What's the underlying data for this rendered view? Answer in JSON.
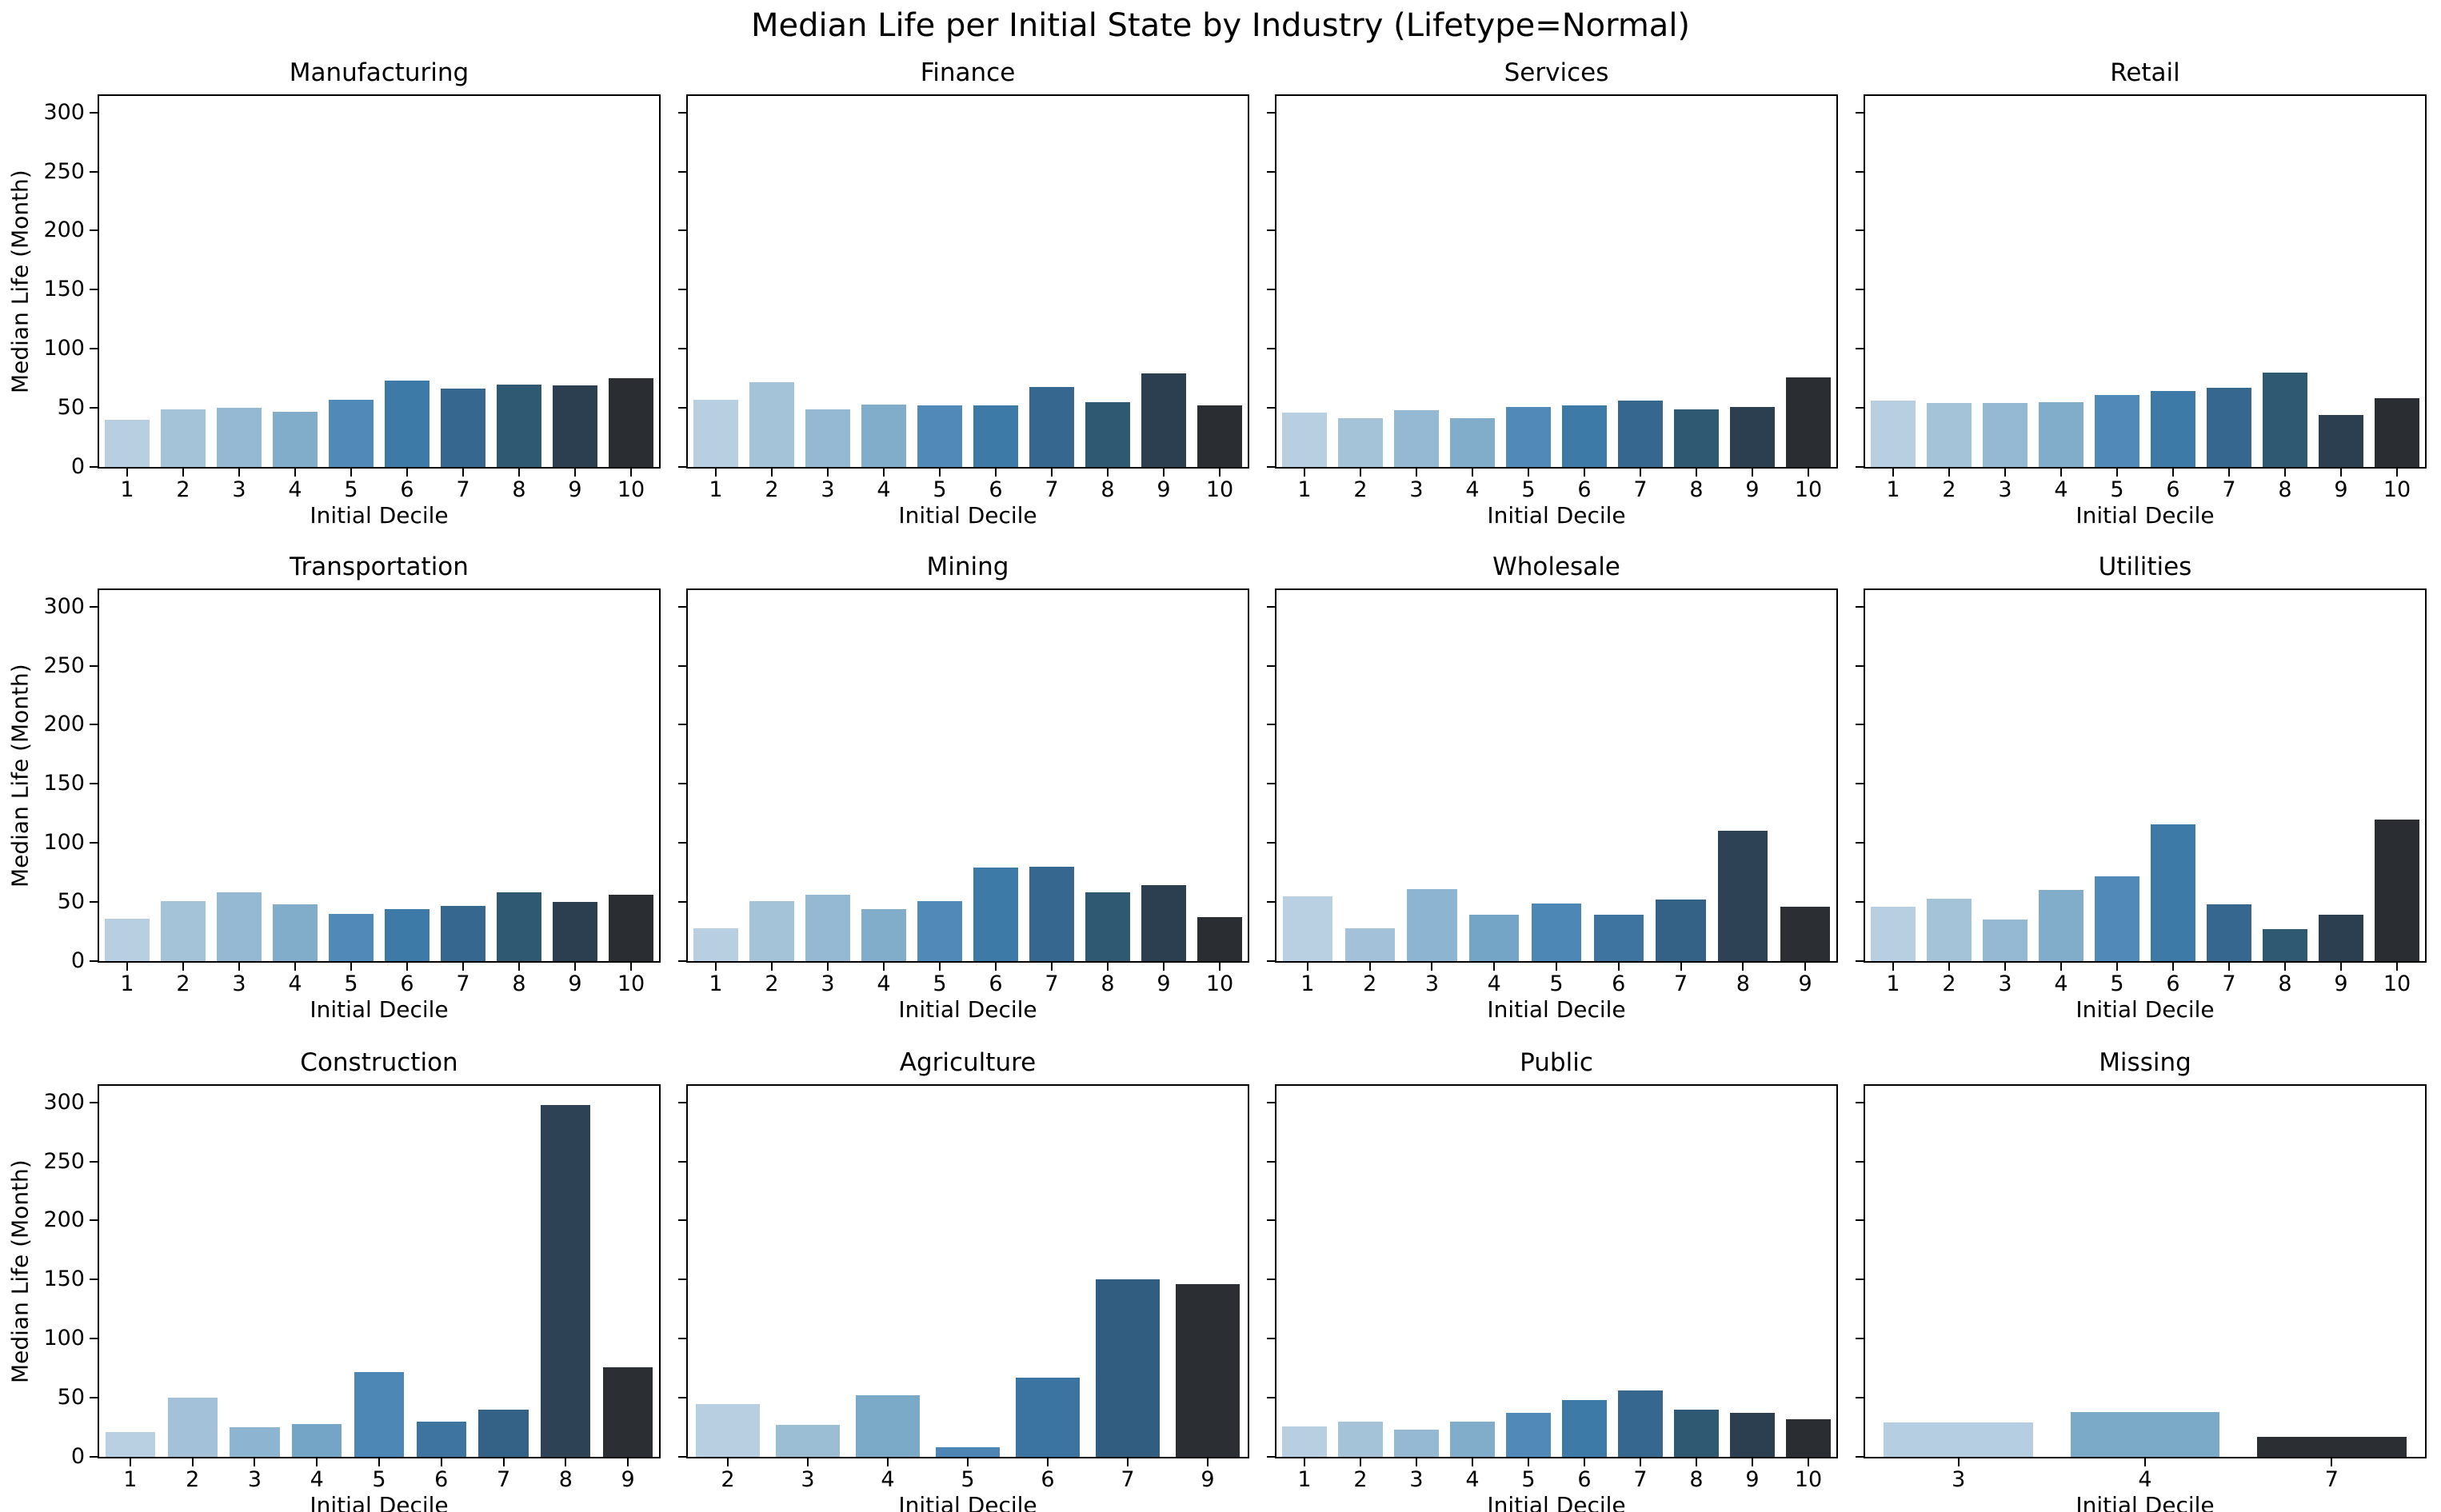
{
  "figure": {
    "background": "#ffffff",
    "spine_color": "#000000",
    "text_color": "#000000"
  },
  "chart_data": {
    "type": "bar",
    "suptitle": "Median Life per Initial State by Industry (Lifetype=Normal)",
    "xlabel": "Initial Decile",
    "ylabel": "Median Life (Month)",
    "ylim": [
      0,
      314
    ],
    "yticks": [
      0,
      50,
      100,
      150,
      200,
      250,
      300
    ],
    "grid": "off",
    "legend": "none",
    "layout": {
      "rows": 3,
      "cols": 4
    },
    "palettes": {
      "p10": [
        "#b8cfe1",
        "#a4c3d9",
        "#95b9d2",
        "#82adca",
        "#5189b8",
        "#3e7aa7",
        "#36688f",
        "#2f5873",
        "#2c3f50",
        "#2a2d31"
      ],
      "p9": [
        "#b9d0e2",
        "#a3c2d9",
        "#8db4d0",
        "#74a4c6",
        "#4d87b6",
        "#3d74a0",
        "#346186",
        "#2e4256",
        "#2b2e32"
      ],
      "p7": [
        "#b7cfe1",
        "#9cbed5",
        "#7baac8",
        "#4d86b5",
        "#3c74a1",
        "#315e80",
        "#2b2e32"
      ],
      "p3": [
        "#b5cee1",
        "#7baac8",
        "#2b2e32"
      ]
    },
    "subplots": [
      {
        "title": "Manufacturing",
        "palette": "p10",
        "categories": [
          "1",
          "2",
          "3",
          "4",
          "5",
          "6",
          "7",
          "8",
          "9",
          "10"
        ],
        "values": [
          40,
          49,
          50,
          47,
          57,
          73,
          66,
          70,
          69,
          75
        ]
      },
      {
        "title": "Finance",
        "palette": "p10",
        "categories": [
          "1",
          "2",
          "3",
          "4",
          "5",
          "6",
          "7",
          "8",
          "9",
          "10"
        ],
        "values": [
          57,
          72,
          49,
          53,
          52,
          52,
          68,
          55,
          79,
          52
        ]
      },
      {
        "title": "Services",
        "palette": "p10",
        "categories": [
          "1",
          "2",
          "3",
          "4",
          "5",
          "6",
          "7",
          "8",
          "9",
          "10"
        ],
        "values": [
          46,
          41,
          48,
          41,
          51,
          52,
          56,
          49,
          51,
          76
        ]
      },
      {
        "title": "Retail",
        "palette": "p10",
        "categories": [
          "1",
          "2",
          "3",
          "4",
          "5",
          "6",
          "7",
          "8",
          "9",
          "10"
        ],
        "values": [
          56,
          54,
          54,
          55,
          61,
          64,
          67,
          80,
          44,
          58
        ]
      },
      {
        "title": "Transportation",
        "palette": "p10",
        "categories": [
          "1",
          "2",
          "3",
          "4",
          "5",
          "6",
          "7",
          "8",
          "9",
          "10"
        ],
        "values": [
          36,
          51,
          58,
          48,
          40,
          44,
          47,
          58,
          50,
          56
        ]
      },
      {
        "title": "Mining",
        "palette": "p10",
        "categories": [
          "1",
          "2",
          "3",
          "4",
          "5",
          "6",
          "7",
          "8",
          "9",
          "10"
        ],
        "values": [
          28,
          51,
          56,
          44,
          51,
          79,
          80,
          58,
          64,
          37
        ]
      },
      {
        "title": "Wholesale",
        "palette": "p9",
        "categories": [
          "1",
          "2",
          "3",
          "4",
          "5",
          "6",
          "7",
          "8",
          "9"
        ],
        "values": [
          55,
          28,
          61,
          39,
          49,
          39,
          52,
          110,
          46
        ]
      },
      {
        "title": "Utilities",
        "palette": "p10",
        "categories": [
          "1",
          "2",
          "3",
          "4",
          "5",
          "6",
          "7",
          "8",
          "9",
          "10"
        ],
        "values": [
          46,
          53,
          35,
          60,
          72,
          116,
          48,
          27,
          39,
          120
        ]
      },
      {
        "title": "Construction",
        "palette": "p9",
        "categories": [
          "1",
          "2",
          "3",
          "4",
          "5",
          "6",
          "7",
          "8",
          "9"
        ],
        "values": [
          21,
          50,
          25,
          28,
          72,
          30,
          40,
          298,
          76
        ]
      },
      {
        "title": "Agriculture",
        "palette": "p7",
        "categories": [
          "2",
          "3",
          "4",
          "5",
          "6",
          "7",
          "9"
        ],
        "values": [
          45,
          27,
          52,
          8,
          67,
          150,
          146
        ]
      },
      {
        "title": "Public",
        "palette": "p10",
        "categories": [
          "1",
          "2",
          "3",
          "4",
          "5",
          "6",
          "7",
          "8",
          "9",
          "10"
        ],
        "values": [
          26,
          30,
          23,
          30,
          37,
          48,
          56,
          40,
          37,
          32
        ]
      },
      {
        "title": "Missing",
        "palette": "p3",
        "categories": [
          "3",
          "4",
          "7"
        ],
        "values": [
          29,
          38,
          17
        ]
      }
    ]
  }
}
